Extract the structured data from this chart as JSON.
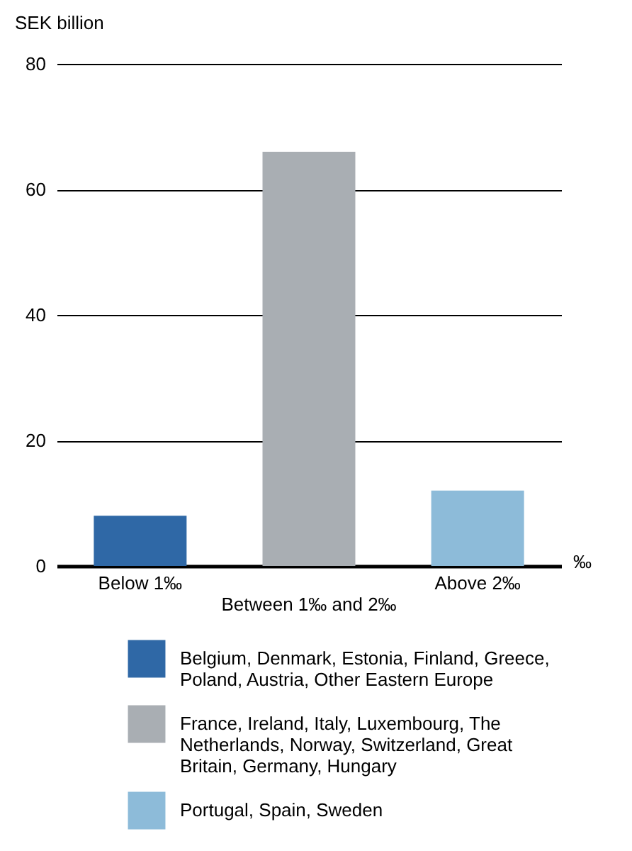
{
  "chart_data": {
    "type": "bar",
    "ylabel": "SEK billion",
    "xlabel": "‰",
    "categories": [
      "Below 1‰",
      "Between 1‰ and 2‰",
      "Above 2‰"
    ],
    "series": [
      {
        "name": "Belgium, Denmark, Estonia, Finland, Greece, Poland, Austria, Other Eastern Europe",
        "color": "#2f68a6",
        "values": [
          8,
          null,
          null
        ]
      },
      {
        "name": "France, Ireland, Italy, Luxembourg, The Netherlands, Norway, Switzerland, Great Britain, Germany, Hungary",
        "color": "#a9aeb3",
        "values": [
          null,
          66,
          null
        ]
      },
      {
        "name": "Portugal, Spain, Sweden",
        "color": "#8dbbd9",
        "values": [
          null,
          null,
          12
        ]
      }
    ],
    "ylim": [
      0,
      80
    ],
    "yticks": [
      0,
      20,
      40,
      60,
      80
    ],
    "grid": "y",
    "legend": "bottom"
  }
}
